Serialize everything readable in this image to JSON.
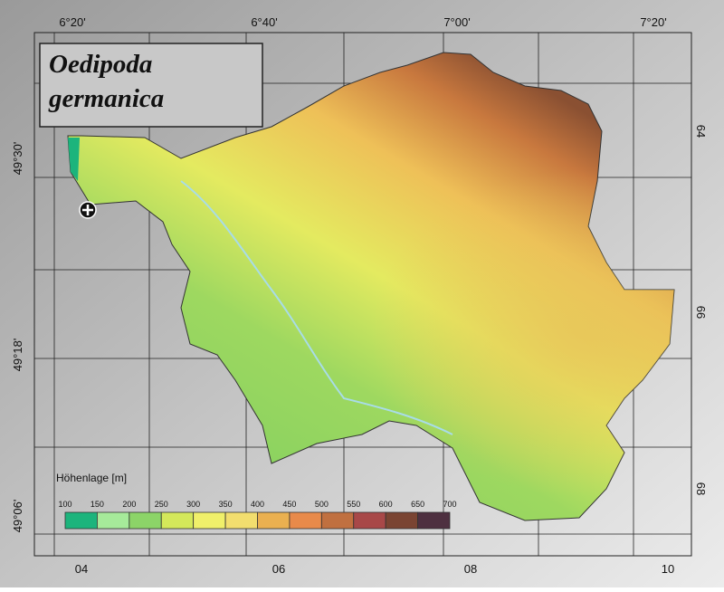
{
  "title": [
    "Oedipoda",
    "germanica"
  ],
  "graticule": {
    "top": [
      "6°20'",
      "6°40'",
      "7°00'",
      "7°20'"
    ],
    "left": [
      "49°30'",
      "49°18'",
      "49°06'"
    ],
    "right": [
      "64",
      "66",
      "68"
    ],
    "bottom": [
      "04",
      "06",
      "08",
      "10"
    ]
  },
  "legend": {
    "title": "Höhenlage [m]",
    "bins": [
      100,
      150,
      200,
      250,
      300,
      350,
      400,
      450,
      500,
      550,
      600,
      650,
      700
    ],
    "colors": [
      "#1cb47c",
      "#a6ea9a",
      "#8cd468",
      "#d4e85a",
      "#f0f06a",
      "#f2de6e",
      "#eab050",
      "#e88a4a",
      "#c07040",
      "#a84848",
      "#7a4432",
      "#4e3040"
    ]
  }
}
